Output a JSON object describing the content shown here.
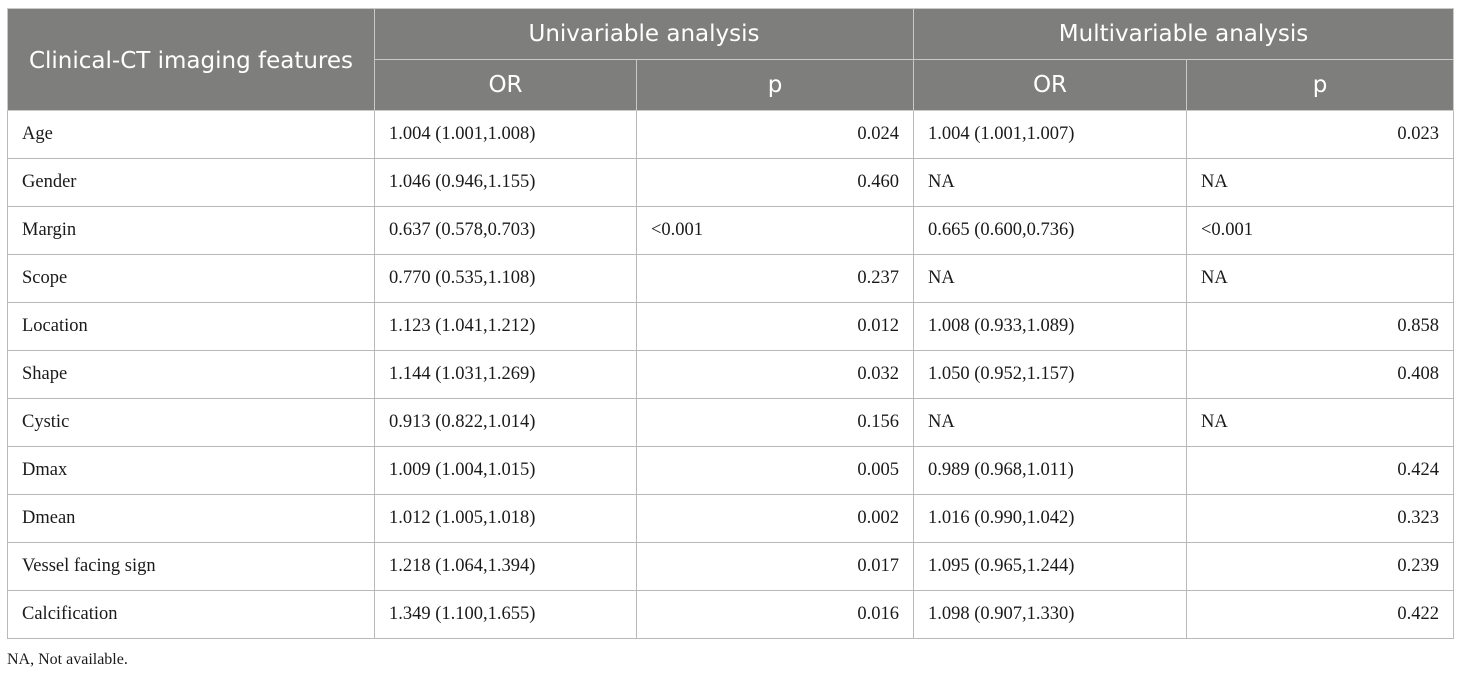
{
  "header": {
    "feature_col": "Clinical-CT imaging features",
    "uni_group": "Univariable analysis",
    "multi_group": "Multivariable analysis",
    "or_label": "OR",
    "p_label": "p"
  },
  "rows": [
    {
      "feature": "Age",
      "uni_or": "1.004 (1.001,1.008)",
      "uni_p": "0.024",
      "multi_or": "1.004 (1.001,1.007)",
      "multi_p": "0.023"
    },
    {
      "feature": "Gender",
      "uni_or": "1.046 (0.946,1.155)",
      "uni_p": "0.460",
      "multi_or": "NA",
      "multi_p": "NA"
    },
    {
      "feature": "Margin",
      "uni_or": "0.637 (0.578,0.703)",
      "uni_p": "<0.001",
      "multi_or": "0.665 (0.600,0.736)",
      "multi_p": "<0.001"
    },
    {
      "feature": "Scope",
      "uni_or": "0.770 (0.535,1.108)",
      "uni_p": "0.237",
      "multi_or": "NA",
      "multi_p": "NA"
    },
    {
      "feature": "Location",
      "uni_or": "1.123 (1.041,1.212)",
      "uni_p": "0.012",
      "multi_or": "1.008 (0.933,1.089)",
      "multi_p": "0.858"
    },
    {
      "feature": "Shape",
      "uni_or": "1.144 (1.031,1.269)",
      "uni_p": "0.032",
      "multi_or": "1.050 (0.952,1.157)",
      "multi_p": "0.408"
    },
    {
      "feature": "Cystic",
      "uni_or": "0.913 (0.822,1.014)",
      "uni_p": "0.156",
      "multi_or": "NA",
      "multi_p": "NA"
    },
    {
      "feature": "Dmax",
      "uni_or": "1.009 (1.004,1.015)",
      "uni_p": "0.005",
      "multi_or": "0.989 (0.968,1.011)",
      "multi_p": "0.424"
    },
    {
      "feature": "Dmean",
      "uni_or": "1.012 (1.005,1.018)",
      "uni_p": "0.002",
      "multi_or": "1.016 (0.990,1.042)",
      "multi_p": "0.323"
    },
    {
      "feature": "Vessel facing sign",
      "uni_or": "1.218 (1.064,1.394)",
      "uni_p": "0.017",
      "multi_or": "1.095 (0.965,1.244)",
      "multi_p": "0.239"
    },
    {
      "feature": "Calcification",
      "uni_or": "1.349 (1.100,1.655)",
      "uni_p": "0.016",
      "multi_or": "1.098 (0.907,1.330)",
      "multi_p": "0.422"
    }
  ],
  "footnote": "NA, Not available."
}
